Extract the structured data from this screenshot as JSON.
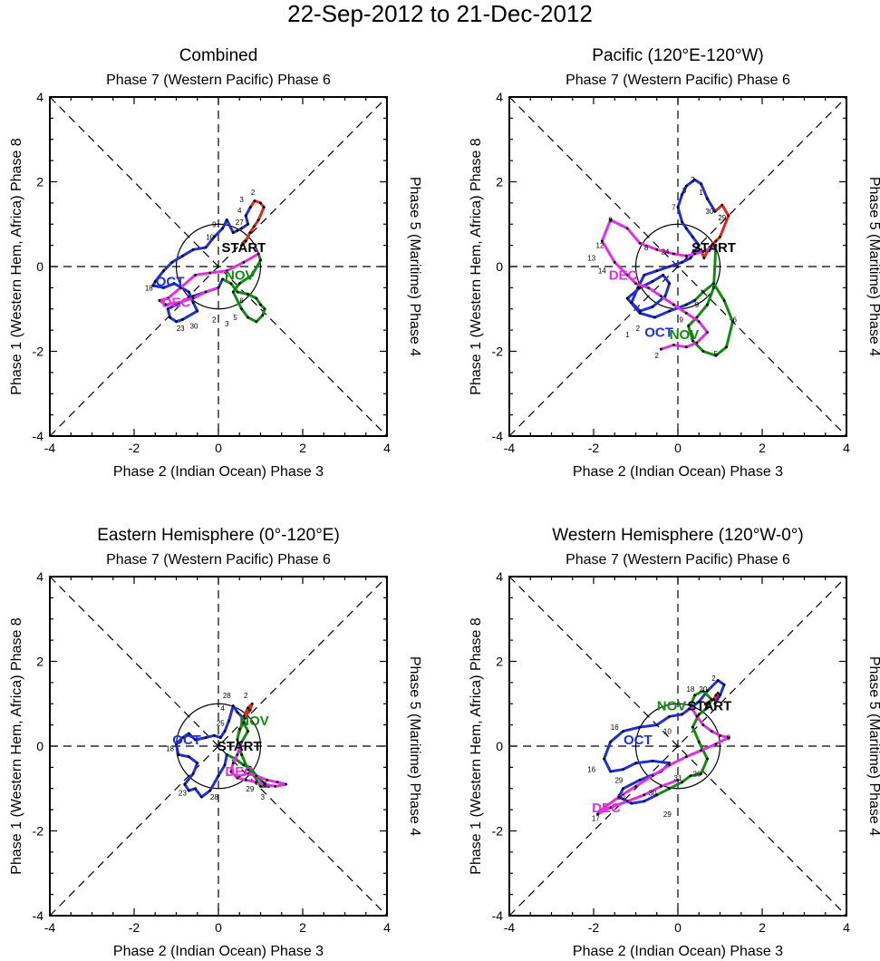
{
  "title": "22-Sep-2012 to 21-Dec-2012",
  "colors": {
    "sep": "#e0291c",
    "oct": "#1f2fd6",
    "nov": "#138a13",
    "dec": "#e030e0",
    "frame": "#000000"
  },
  "axis_labels": {
    "top": "Phase 7 (Western Pacific) Phase 6",
    "bottom": "Phase 2 (Indian Ocean) Phase 3",
    "left": "Phase 1 (Western Hem, Africa) Phase 8",
    "right": "Phase 5 (Maritime) Phase 4"
  },
  "ticks": [
    "-4",
    "-2",
    "0",
    "2",
    "4"
  ],
  "month_labels": {
    "sep": "START",
    "oct": "OCT",
    "nov": "NOV",
    "dec": "DEC"
  },
  "chart_data": [
    {
      "type": "line",
      "title": "Combined",
      "xlim": [
        -4,
        4
      ],
      "ylim": [
        -4,
        4
      ],
      "series": [
        {
          "name": "Sep",
          "color": "sep",
          "x": [
            0.55,
            0.65,
            0.75,
            0.85,
            0.95,
            1.08,
            1.0,
            0.86,
            0.76
          ],
          "y": [
            0.5,
            0.6,
            0.8,
            0.95,
            1.1,
            1.4,
            1.5,
            1.55,
            1.4
          ]
        },
        {
          "name": "Oct",
          "color": "oct",
          "x": [
            0.76,
            0.65,
            0.7,
            0.55,
            0.45,
            0.35,
            0.2,
            0.1,
            -0.1,
            -0.3,
            -0.6,
            -0.85,
            -1.1,
            -1.3,
            -1.5,
            -1.55,
            -1.3,
            -1.05,
            -0.7,
            -0.6,
            -0.5,
            -0.85,
            -1.0,
            -1.15,
            -1.2,
            -0.6,
            0.0,
            0.1
          ],
          "y": [
            1.4,
            1.2,
            1.0,
            0.9,
            0.85,
            0.8,
            1.1,
            0.9,
            0.7,
            0.45,
            0.4,
            0.25,
            0.1,
            -0.1,
            -0.35,
            -0.45,
            -0.5,
            -0.4,
            -0.6,
            -0.85,
            -1.05,
            -1.25,
            -1.3,
            -1.2,
            -1.0,
            -0.7,
            -0.5,
            -0.3
          ]
        },
        {
          "name": "Nov",
          "color": "nov",
          "x": [
            0.1,
            0.3,
            0.45,
            0.7,
            0.9,
            1.0,
            1.1,
            1.05,
            0.9,
            0.7,
            0.55,
            0.35,
            0.5,
            0.8,
            1.0,
            0.95
          ],
          "y": [
            -0.3,
            -0.4,
            -0.6,
            -0.65,
            -0.75,
            -0.9,
            -1.0,
            -1.15,
            -1.3,
            -1.2,
            -1.0,
            -0.6,
            -0.4,
            -0.2,
            0.15,
            0.3
          ]
        },
        {
          "name": "Dec",
          "color": "dec",
          "x": [
            0.95,
            0.6,
            0.2,
            -0.2,
            -0.55,
            -0.9,
            -1.2,
            -1.4,
            -1.25,
            -0.95,
            -0.6,
            -0.3,
            0.0
          ],
          "y": [
            0.3,
            0.1,
            -0.1,
            -0.15,
            -0.2,
            -0.5,
            -0.75,
            -0.8,
            -0.9,
            -0.85,
            -0.75,
            -0.6,
            -0.5
          ]
        }
      ],
      "day_labels": [
        {
          "text": "2",
          "x": 0.82,
          "y": 1.75
        },
        {
          "text": "3",
          "x": 0.55,
          "y": 1.58
        },
        {
          "text": "4",
          "x": 0.5,
          "y": 1.33
        },
        {
          "text": "27",
          "x": 0.5,
          "y": 1.05
        },
        {
          "text": "9",
          "x": -0.1,
          "y": 1.0
        },
        {
          "text": "10",
          "x": -0.2,
          "y": 0.7
        },
        {
          "text": "18",
          "x": -1.65,
          "y": -0.5
        },
        {
          "text": "23",
          "x": -0.9,
          "y": -1.45
        },
        {
          "text": "30",
          "x": -0.58,
          "y": -1.4
        },
        {
          "text": "2",
          "x": -0.1,
          "y": -1.25
        },
        {
          "text": "5",
          "x": 0.4,
          "y": -1.2
        },
        {
          "text": "3",
          "x": 0.2,
          "y": -1.35
        },
        {
          "text": "6",
          "x": 0.55,
          "y": -0.8
        }
      ],
      "month_markers": [
        {
          "month": "sep",
          "x": 0.6,
          "y": 0.45
        },
        {
          "month": "oct",
          "x": -1.15,
          "y": -0.35
        },
        {
          "month": "nov",
          "x": 0.5,
          "y": -0.2
        },
        {
          "month": "dec",
          "x": -1.0,
          "y": -0.85
        }
      ]
    },
    {
      "type": "line",
      "title": "Pacific (120°E-120°W)",
      "xlim": [
        -4,
        4
      ],
      "ylim": [
        -4,
        4
      ],
      "series": [
        {
          "name": "Sep",
          "color": "sep",
          "x": [
            0.55,
            0.62,
            0.75,
            0.9,
            1.0,
            1.2,
            1.05,
            0.88
          ],
          "y": [
            0.4,
            0.2,
            0.45,
            0.6,
            0.7,
            1.2,
            1.45,
            1.3
          ]
        },
        {
          "name": "Oct",
          "color": "oct",
          "x": [
            0.88,
            0.7,
            0.55,
            0.4,
            0.2,
            0.1,
            0.0,
            0.1,
            0.2,
            0.35,
            0.5,
            0.3,
            0.1,
            -0.2,
            -0.5,
            -0.8,
            -0.95,
            -1.1,
            -0.9,
            -0.6,
            -0.3,
            -0.2,
            -0.35,
            -0.6,
            -0.9,
            -1.2,
            -0.9,
            -0.55,
            -0.2,
            0.2,
            0.4
          ],
          "y": [
            1.3,
            1.6,
            1.95,
            2.05,
            1.9,
            1.7,
            1.4,
            1.05,
            0.9,
            0.7,
            0.5,
            0.2,
            0.1,
            0.0,
            -0.1,
            -0.2,
            -0.5,
            -0.85,
            -1.05,
            -0.95,
            -0.7,
            -0.4,
            -0.2,
            -0.35,
            -0.5,
            -0.75,
            -1.1,
            -1.2,
            -1.05,
            -0.9,
            -0.8
          ]
        },
        {
          "name": "Nov",
          "color": "nov",
          "x": [
            0.4,
            0.6,
            0.85,
            1.1,
            1.3,
            1.15,
            0.9,
            0.6,
            0.35,
            0.25,
            0.45,
            0.7,
            0.85,
            0.9
          ],
          "y": [
            -0.8,
            -0.6,
            -0.4,
            -0.8,
            -1.3,
            -1.9,
            -2.1,
            -2.0,
            -1.75,
            -1.4,
            -1.2,
            -0.9,
            -0.5,
            0.5
          ]
        },
        {
          "name": "Dec",
          "color": "dec",
          "x": [
            0.9,
            0.6,
            0.4,
            0.2,
            -0.1,
            -0.5,
            -0.9,
            -1.2,
            -1.6,
            -1.8,
            -1.5,
            -1.2,
            -1.0,
            -0.7,
            -0.4,
            -0.1,
            0.2,
            0.5,
            0.7,
            0.45,
            0.2,
            -0.1,
            -0.4
          ],
          "y": [
            0.5,
            0.35,
            0.3,
            0.25,
            0.3,
            0.4,
            0.55,
            0.9,
            1.1,
            0.6,
            0.1,
            -0.2,
            -0.4,
            -0.5,
            -0.7,
            -0.9,
            -1.1,
            -1.3,
            -1.55,
            -1.8,
            -1.9,
            -1.85,
            -1.95
          ]
        }
      ],
      "day_labels": [
        {
          "text": "2",
          "x": 0.35,
          "y": 2.05
        },
        {
          "text": "1",
          "x": 0.55,
          "y": 1.75
        },
        {
          "text": "3",
          "x": 0.15,
          "y": 1.8
        },
        {
          "text": "7",
          "x": -0.1,
          "y": 1.4
        },
        {
          "text": "30",
          "x": 0.75,
          "y": 1.3
        },
        {
          "text": "29",
          "x": 1.05,
          "y": 1.15
        },
        {
          "text": "9",
          "x": -1.6,
          "y": 1.1
        },
        {
          "text": "12",
          "x": -1.85,
          "y": 0.5
        },
        {
          "text": "13",
          "x": -2.05,
          "y": 0.2
        },
        {
          "text": "14",
          "x": -1.8,
          "y": -0.1
        },
        {
          "text": "8",
          "x": -0.75,
          "y": 0.45
        },
        {
          "text": "24",
          "x": -0.3,
          "y": 0.35
        },
        {
          "text": "2",
          "x": -0.95,
          "y": -1.45
        },
        {
          "text": "1",
          "x": -1.2,
          "y": -1.6
        },
        {
          "text": "6",
          "x": 1.35,
          "y": -1.25
        },
        {
          "text": "5",
          "x": 0.9,
          "y": -2.05
        },
        {
          "text": "9",
          "x": 0.08,
          "y": -1.25
        },
        {
          "text": "2",
          "x": -0.5,
          "y": -2.1
        },
        {
          "text": "9",
          "x": 0.45,
          "y": -0.9
        }
      ],
      "month_markers": [
        {
          "month": "sep",
          "x": 0.85,
          "y": 0.45
        },
        {
          "month": "oct",
          "x": -0.45,
          "y": -1.55
        },
        {
          "month": "nov",
          "x": 0.15,
          "y": -1.6
        },
        {
          "month": "dec",
          "x": -1.3,
          "y": -0.2
        }
      ]
    },
    {
      "type": "line",
      "title": "Eastern Hemisphere (0°-120°E)",
      "xlim": [
        -4,
        4
      ],
      "ylim": [
        -4,
        4
      ],
      "series": [
        {
          "name": "Sep",
          "color": "sep",
          "x": [
            0.5,
            0.55,
            0.6,
            0.7,
            0.8,
            0.75,
            0.6
          ],
          "y": [
            0.35,
            0.5,
            0.7,
            0.9,
            1.0,
            0.85,
            0.65
          ]
        },
        {
          "name": "Oct",
          "color": "oct",
          "x": [
            0.6,
            0.45,
            0.35,
            0.25,
            0.15,
            0.05,
            -0.1,
            -0.3,
            -0.55,
            -0.7,
            -0.85,
            -1.0,
            -0.95,
            -0.7,
            -0.5,
            -0.6,
            -0.8,
            -0.7,
            -0.55,
            -0.4,
            -0.2,
            0.0,
            0.15,
            0.2
          ],
          "y": [
            0.65,
            0.8,
            0.95,
            0.6,
            0.35,
            0.2,
            0.25,
            0.2,
            0.15,
            0.3,
            0.2,
            0.05,
            -0.2,
            -0.25,
            -0.4,
            -0.65,
            -0.9,
            -1.05,
            -1.0,
            -1.2,
            -1.05,
            -0.7,
            -0.45,
            -0.2
          ]
        },
        {
          "name": "Nov",
          "color": "nov",
          "x": [
            0.2,
            0.4,
            0.6,
            0.75,
            0.9,
            1.05,
            1.2,
            1.0,
            0.85,
            0.7,
            0.55,
            0.45,
            0.5,
            0.6,
            0.7,
            0.55
          ],
          "y": [
            -0.2,
            -0.3,
            -0.45,
            -0.5,
            -0.7,
            -0.85,
            -0.95,
            -0.95,
            -0.7,
            -0.55,
            -0.2,
            0.15,
            0.4,
            0.55,
            0.35,
            0.1
          ]
        },
        {
          "name": "Dec",
          "color": "dec",
          "x": [
            0.55,
            0.45,
            0.35,
            0.3,
            0.45,
            0.65,
            0.9,
            1.1,
            1.35,
            1.6,
            1.4,
            1.15,
            0.9,
            0.7,
            0.5
          ],
          "y": [
            0.1,
            -0.2,
            -0.4,
            -0.6,
            -0.75,
            -0.8,
            -0.85,
            -0.9,
            -0.95,
            -0.9,
            -0.85,
            -0.8,
            -0.7,
            -0.65,
            -0.7
          ]
        }
      ],
      "day_labels": [
        {
          "text": "28",
          "x": 0.2,
          "y": 1.2
        },
        {
          "text": "2",
          "x": 0.65,
          "y": 1.2
        },
        {
          "text": "4",
          "x": 0.1,
          "y": 0.9
        },
        {
          "text": "25",
          "x": 0.05,
          "y": 0.55
        },
        {
          "text": "18",
          "x": -1.15,
          "y": -0.05
        },
        {
          "text": "23",
          "x": -0.85,
          "y": -1.1
        },
        {
          "text": "28",
          "x": -0.1,
          "y": -1.2
        },
        {
          "text": "29",
          "x": 0.75,
          "y": -1.0
        },
        {
          "text": "3",
          "x": 1.05,
          "y": -1.2
        },
        {
          "text": "8",
          "x": 1.1,
          "y": -0.9
        }
      ],
      "month_markers": [
        {
          "month": "sep",
          "x": 0.5,
          "y": 0.0
        },
        {
          "month": "oct",
          "x": -0.75,
          "y": 0.15
        },
        {
          "month": "nov",
          "x": 0.85,
          "y": 0.6
        },
        {
          "month": "dec",
          "x": 0.5,
          "y": -0.6
        }
      ]
    },
    {
      "type": "line",
      "title": "Western Hemisphere (120°W-0°)",
      "xlim": [
        -4,
        4
      ],
      "ylim": [
        -4,
        4
      ],
      "series": [
        {
          "name": "Sep",
          "color": "sep",
          "x": [
            0.7,
            0.65,
            0.75,
            0.85,
            0.9,
            0.95,
            0.88
          ],
          "y": [
            0.9,
            1.0,
            1.05,
            1.1,
            1.2,
            1.25,
            1.0
          ]
        },
        {
          "name": "Oct",
          "color": "oct",
          "x": [
            0.88,
            1.0,
            1.1,
            0.95,
            0.7,
            0.5,
            0.3,
            0.1,
            -0.2,
            -0.5,
            -0.9,
            -1.3,
            -1.6,
            -1.75,
            -1.6,
            -1.3,
            -1.0,
            -0.6,
            -0.2,
            -0.4,
            -0.9,
            -1.3,
            -1.4,
            -1.1,
            -0.8,
            -0.5
          ],
          "y": [
            1.0,
            1.2,
            1.45,
            1.55,
            1.3,
            1.05,
            0.9,
            0.75,
            0.7,
            0.5,
            0.45,
            0.35,
            0.1,
            -0.3,
            -0.6,
            -0.55,
            -0.4,
            -0.35,
            -0.4,
            -0.6,
            -0.8,
            -1.0,
            -1.2,
            -1.35,
            -1.3,
            -1.15
          ]
        },
        {
          "name": "Nov",
          "color": "nov",
          "x": [
            -0.5,
            -0.2,
            0.1,
            0.3,
            0.55,
            0.7,
            0.5,
            0.35,
            0.5,
            0.7,
            0.8,
            0.6,
            0.4,
            0.3
          ],
          "y": [
            -1.15,
            -1.0,
            -0.85,
            -0.7,
            -0.65,
            -0.3,
            0.1,
            0.45,
            0.75,
            0.9,
            1.1,
            1.3,
            1.2,
            0.95
          ]
        },
        {
          "name": "Dec",
          "color": "dec",
          "x": [
            0.3,
            0.45,
            0.6,
            0.8,
            1.0,
            1.2,
            0.9,
            0.55,
            0.2,
            -0.2,
            -0.6,
            -1.0,
            -1.4,
            -1.75,
            -1.9,
            -1.6,
            -1.2,
            -0.8,
            -0.4,
            0.0
          ],
          "y": [
            0.95,
            0.7,
            0.5,
            0.35,
            0.25,
            0.2,
            0.05,
            -0.1,
            -0.25,
            -0.45,
            -0.7,
            -0.95,
            -1.2,
            -1.45,
            -1.6,
            -1.45,
            -1.3,
            -1.15,
            -0.95,
            -0.8
          ]
        }
      ],
      "day_labels": [
        {
          "text": "2",
          "x": 0.85,
          "y": 1.6
        },
        {
          "text": "20",
          "x": 0.6,
          "y": 1.35
        },
        {
          "text": "18",
          "x": 0.3,
          "y": 1.35
        },
        {
          "text": "10",
          "x": -0.25,
          "y": 0.35
        },
        {
          "text": "16",
          "x": -1.5,
          "y": 0.45
        },
        {
          "text": "16",
          "x": -2.05,
          "y": -0.55
        },
        {
          "text": "29",
          "x": -1.4,
          "y": -0.8
        },
        {
          "text": "30",
          "x": -1.35,
          "y": -1.2
        },
        {
          "text": "29",
          "x": -0.25,
          "y": -1.6
        },
        {
          "text": "30",
          "x": -0.6,
          "y": -1.1
        },
        {
          "text": "31",
          "x": 0.0,
          "y": -0.75
        },
        {
          "text": "26",
          "x": 0.45,
          "y": -0.65
        },
        {
          "text": "9",
          "x": 1.2,
          "y": 0.2
        },
        {
          "text": "17",
          "x": -1.95,
          "y": -1.7
        }
      ],
      "month_markers": [
        {
          "month": "sep",
          "x": 0.75,
          "y": 0.95
        },
        {
          "month": "oct",
          "x": -0.95,
          "y": 0.15
        },
        {
          "month": "nov",
          "x": -0.15,
          "y": 0.95
        },
        {
          "month": "dec",
          "x": -1.7,
          "y": -1.45
        }
      ]
    }
  ]
}
